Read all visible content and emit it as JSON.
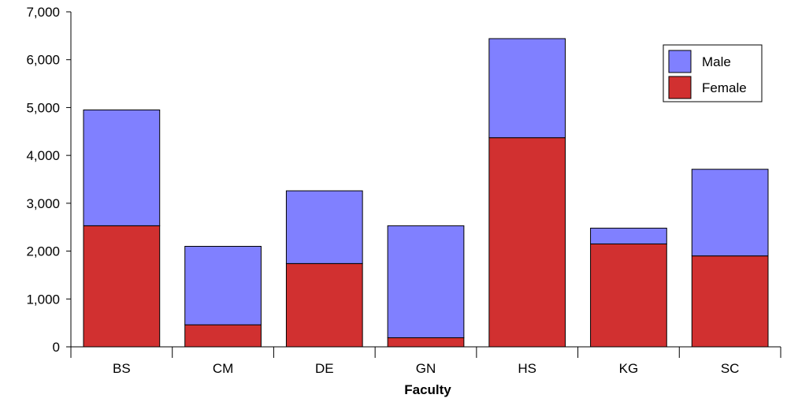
{
  "chart_data": {
    "type": "bar",
    "stacked": true,
    "categories": [
      "BS",
      "CM",
      "DE",
      "GN",
      "HS",
      "KG",
      "SC"
    ],
    "series": [
      {
        "name": "Female",
        "color": "#d13030",
        "values": [
          2530,
          460,
          1740,
          190,
          4370,
          2150,
          1900
        ]
      },
      {
        "name": "Male",
        "color": "#8080ff",
        "values": [
          2420,
          1640,
          1520,
          2340,
          2070,
          330,
          1810
        ]
      }
    ],
    "xlabel": "Faculty",
    "ylabel": "",
    "ylim": [
      0,
      7000
    ],
    "yticks": [
      "0",
      "1,000",
      "2,000",
      "3,000",
      "4,000",
      "5,000",
      "6,000",
      "7,000"
    ],
    "legend": {
      "position": "top-right",
      "entries": [
        "Male",
        "Female"
      ]
    },
    "grid": false
  }
}
